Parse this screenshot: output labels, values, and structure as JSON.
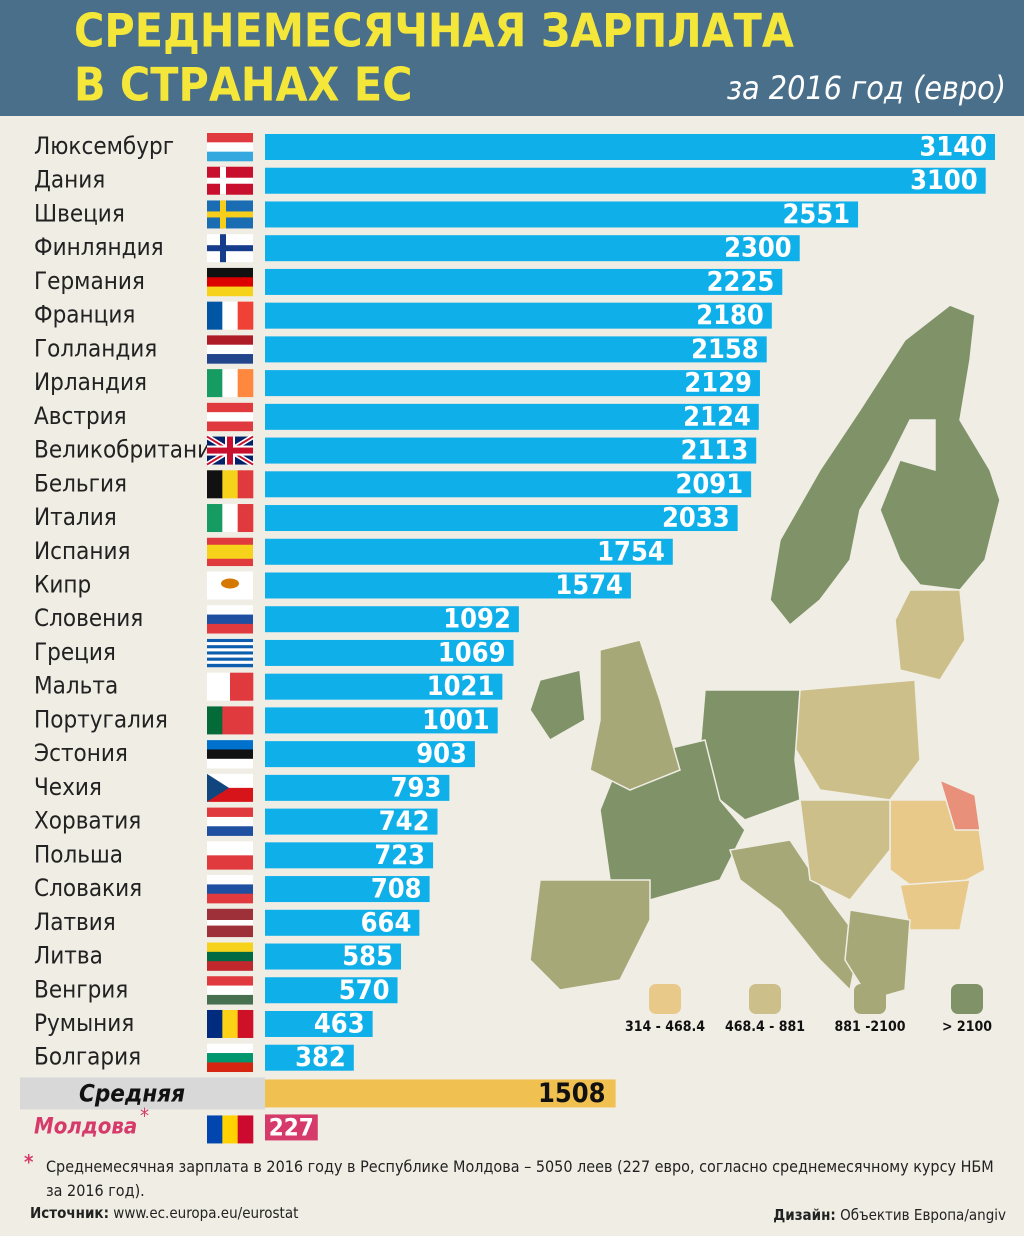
{
  "chart_data": {
    "type": "bar",
    "title": [
      "СРЕДНЕМЕСЯЧНАЯ ЗАРПЛАТА",
      "В СТРАНАХ ЕС"
    ],
    "subtitle": "за 2016 год (евро)",
    "color": "#0fb0ea",
    "categories": [
      "Люксембург",
      "Дания",
      "Швеция",
      "Финляндия",
      "Германия",
      "Франция",
      "Голландия",
      "Ирландия",
      "Австрия",
      "Великобритания",
      "Бельгия",
      "Италия",
      "Испания",
      "Кипр",
      "Словения",
      "Греция",
      "Мальта",
      "Португалия",
      "Эстония",
      "Чехия",
      "Хорватия",
      "Польша",
      "Словакия",
      "Латвия",
      "Литва",
      "Венгрия",
      "Румыния",
      "Болгария"
    ],
    "values": [
      3140,
      3100,
      2551,
      2300,
      2225,
      2180,
      2158,
      2129,
      2124,
      2113,
      2091,
      2033,
      1754,
      1574,
      1092,
      1069,
      1021,
      1001,
      903,
      793,
      742,
      723,
      708,
      664,
      585,
      570,
      463,
      382
    ],
    "average": {
      "label": "Средняя",
      "value": 1508,
      "color": "#f0c050"
    },
    "moldova": {
      "label": "Молдова",
      "marker": "*",
      "value": 227,
      "color": "#d63a6a"
    },
    "map_legend": [
      {
        "label": "314 - 468.4",
        "color": "#e8c98a"
      },
      {
        "label": "468.4 - 881",
        "color": "#cdbf8a"
      },
      {
        "label": "881 -2100",
        "color": "#a6a877"
      },
      {
        "label": "> 2100",
        "color": "#7f9268"
      }
    ],
    "footnote": {
      "marker": "*",
      "text": "Среднемесячная зарплата в 2016 году в Республике Молдова – 5050 леев (227 евро, согласно среднемесячному курсу НБМ за 2016 год)."
    },
    "source": {
      "label": "Источник:",
      "text": "www.ec.europa.eu/eurostat"
    },
    "design": {
      "label": "Дизайн:",
      "text": "Объектив Европа/angiv"
    }
  }
}
